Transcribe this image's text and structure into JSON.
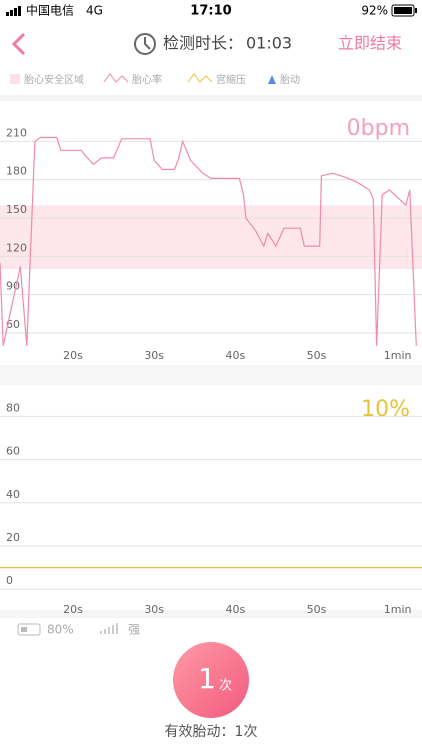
{
  "status_bar": {
    "carrier": "中国电信",
    "network": "4G",
    "time": "17:10",
    "battery": "92%"
  },
  "header": {
    "duration_label": "检测时长：",
    "duration": "01:03",
    "action": "立即结束"
  },
  "legend": [
    "胎心安全区域",
    "胎心率",
    "宫缩压",
    "胎动"
  ],
  "fhr_chart": {
    "type": "line",
    "current": "0bpm",
    "color": "#f08aab",
    "band_color": "#fde6ec",
    "safe_band": [
      110,
      160
    ],
    "x": [
      11,
      11.4,
      13.5,
      14.3,
      15.3,
      16,
      18,
      18.5,
      21,
      21.5,
      22.5,
      23.5,
      25,
      26,
      29.5,
      30,
      31,
      32.5,
      33,
      33.5,
      34.5,
      36,
      37,
      40.5,
      41,
      41.3,
      42.5,
      43.5,
      44,
      45,
      46,
      48,
      48.5,
      50.4,
      50.6,
      52,
      53.5,
      55,
      56.5,
      57,
      57.4,
      58.1,
      59,
      61,
      61.5,
      62.3
    ],
    "values": [
      115,
      50,
      112,
      50,
      210,
      213,
      213,
      203,
      203,
      199,
      192,
      197,
      197,
      212,
      212,
      195,
      188,
      188,
      196,
      210,
      195,
      185,
      181,
      181,
      168,
      150,
      140,
      128,
      138,
      128,
      142,
      142,
      128,
      128,
      183,
      185,
      182,
      178,
      172,
      165,
      50,
      168,
      172,
      160,
      172,
      50
    ],
    "xlim": [
      11,
      63
    ],
    "ylim": [
      50,
      240
    ],
    "xticks": [
      {
        "value": 20,
        "label": "20s"
      },
      {
        "value": 30,
        "label": "30s"
      },
      {
        "value": 40,
        "label": "40s"
      },
      {
        "value": 50,
        "label": "50s"
      },
      {
        "value": 60,
        "label": "1min"
      }
    ],
    "yticks": [
      60,
      90,
      120,
      150,
      180,
      210
    ],
    "grid": true
  },
  "toco_chart": {
    "type": "line",
    "current": "10%",
    "color": "#e8c33a",
    "x": [
      11,
      63
    ],
    "values": [
      10,
      10
    ],
    "xlim": [
      11,
      63
    ],
    "ylim": [
      -5,
      95
    ],
    "xticks": [
      {
        "value": 20,
        "label": "20s"
      },
      {
        "value": 30,
        "label": "30s"
      },
      {
        "value": 40,
        "label": "40s"
      },
      {
        "value": 50,
        "label": "50s"
      },
      {
        "value": 60,
        "label": "1min"
      }
    ],
    "yticks": [
      0,
      20,
      40,
      60,
      80
    ],
    "grid": true
  },
  "device": {
    "battery": "80%",
    "signal": "强"
  },
  "movement": {
    "count": "1",
    "unit": "次",
    "summary": "有效胎动：1次"
  }
}
